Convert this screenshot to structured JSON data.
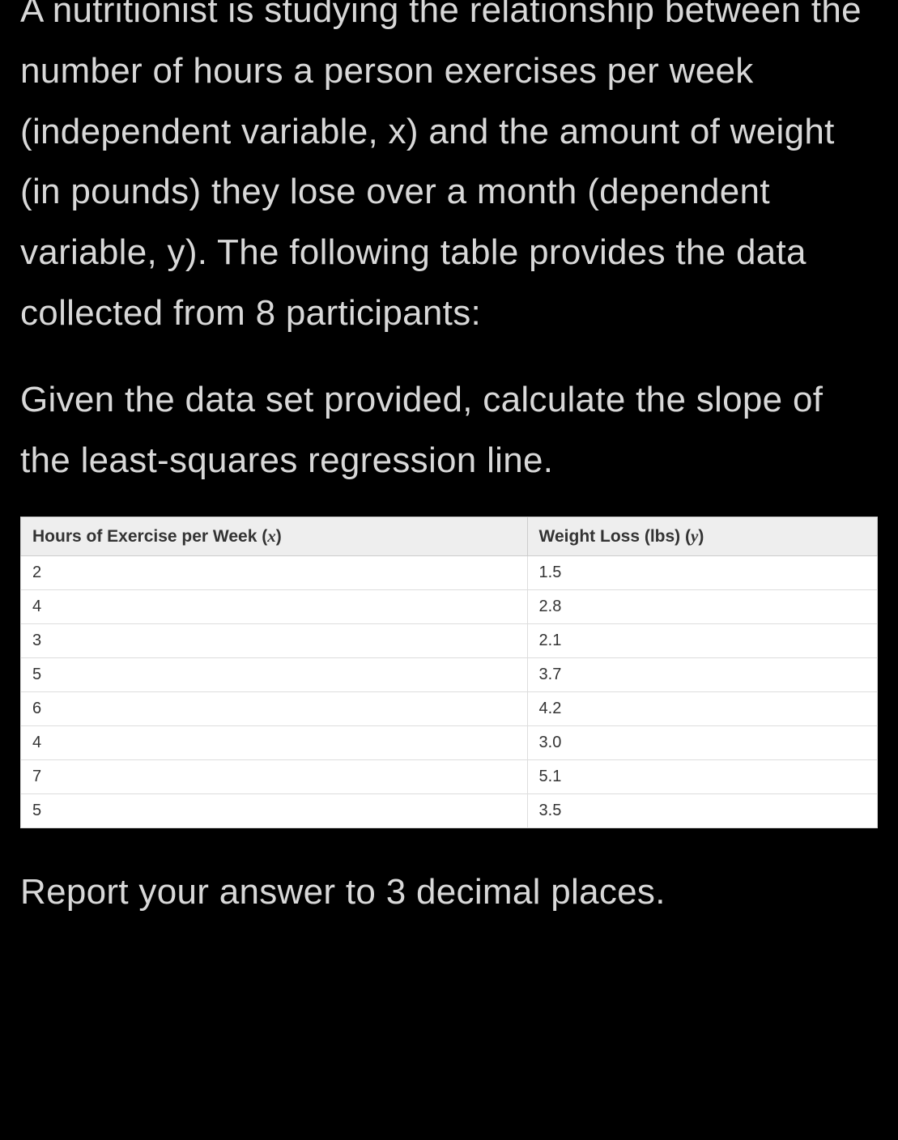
{
  "paragraphs": {
    "p1": "A nutritionist is studying the relationship between the number of hours a person exercises per week (independent variable, x) and the amount of weight (in pounds) they lose over a month (dependent variable, y). The following table provides the data collected from 8 participants:",
    "p2": "Given the data set provided, calculate the slope of the least-squares regression line.",
    "p3": "Report your answer to 3 decimal places."
  },
  "table": {
    "headers": {
      "col1_prefix": "Hours of Exercise per Week (",
      "col1_var": "x",
      "col1_suffix": ")",
      "col2_prefix": "Weight Loss (lbs) (",
      "col2_var": "y",
      "col2_suffix": ")"
    },
    "rows": [
      {
        "x": "2",
        "y": "1.5"
      },
      {
        "x": "4",
        "y": "2.8"
      },
      {
        "x": "3",
        "y": "2.1"
      },
      {
        "x": "5",
        "y": "3.7"
      },
      {
        "x": "6",
        "y": "4.2"
      },
      {
        "x": "4",
        "y": "3.0"
      },
      {
        "x": "7",
        "y": "5.1"
      },
      {
        "x": "5",
        "y": "3.5"
      }
    ],
    "styling": {
      "header_bg": "#eeeeee",
      "header_text_color": "#333333",
      "header_fontsize": 21,
      "cell_bg": "#ffffff",
      "cell_text_color": "#333333",
      "cell_fontsize": 20,
      "border_color": "#cccccc",
      "inner_border_color": "#dddddd"
    }
  },
  "page": {
    "background_color": "#000000",
    "text_color": "#d8d8d8",
    "body_fontsize": 44,
    "body_font_weight": 300,
    "line_height": 1.7
  }
}
